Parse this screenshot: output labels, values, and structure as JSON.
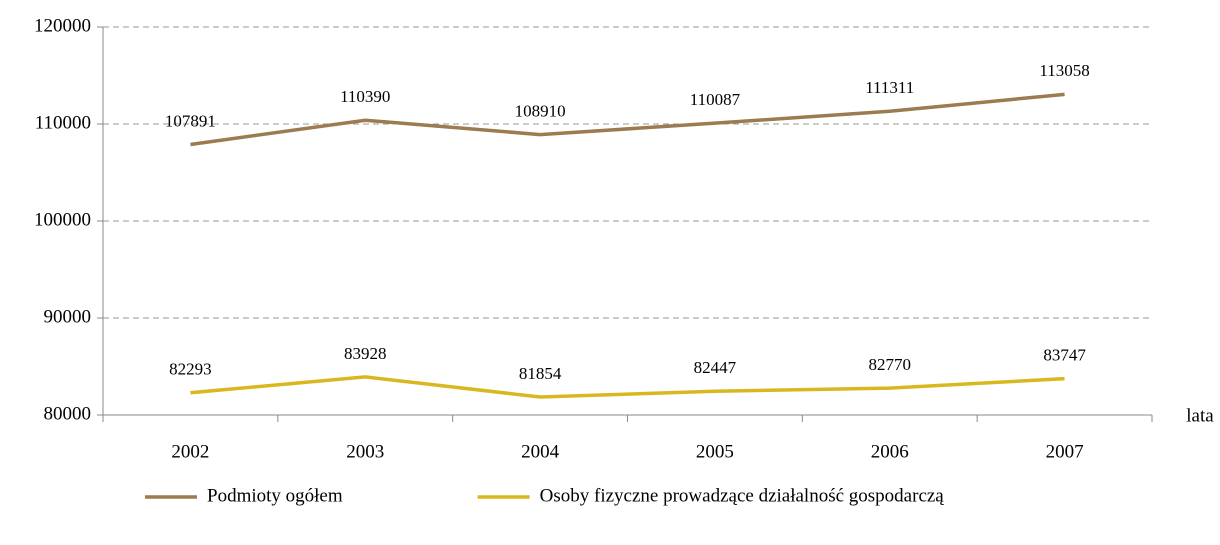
{
  "chart_data": {
    "type": "line",
    "categories": [
      "2002",
      "2003",
      "2004",
      "2005",
      "2006",
      "2007"
    ],
    "series": [
      {
        "name": "Podmioty ogółem",
        "color": "#9b7b4f",
        "values": [
          107891,
          110390,
          108910,
          110087,
          111311,
          113058
        ]
      },
      {
        "name": "Osoby fizyczne prowadzące działalność gospodarczą",
        "color": "#d9b81f",
        "values": [
          82293,
          83928,
          81854,
          82447,
          82770,
          83747
        ]
      }
    ],
    "x_label": "lata",
    "ylim": [
      80000,
      120000
    ],
    "yticks": [
      80000,
      90000,
      100000,
      110000,
      120000
    ],
    "grid": true,
    "legend": "bottom"
  }
}
